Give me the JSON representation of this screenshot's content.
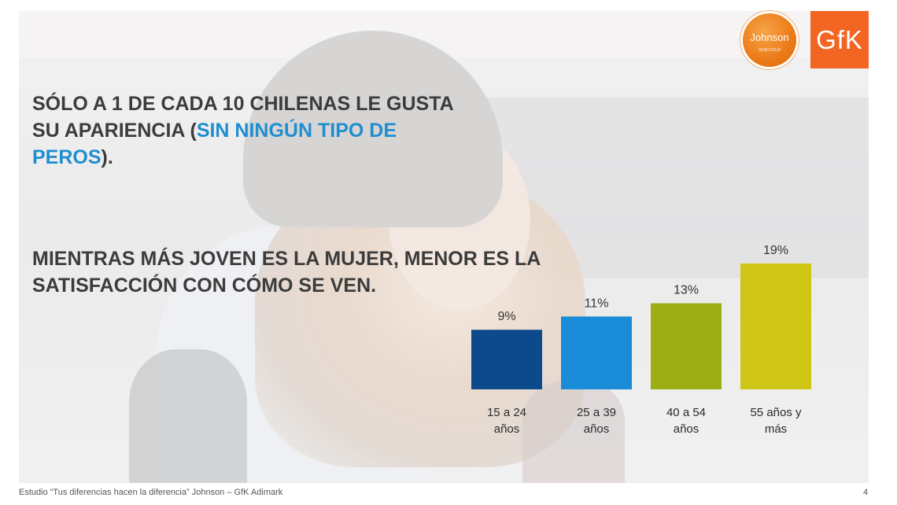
{
  "headline_1": {
    "part_1": "SÓLO A 1 DE CADA 10 CHILENAS LE GUSTA SU APARIENCIA (",
    "highlight": "SIN NINGÚN TIPO DE PEROS",
    "part_2": ")."
  },
  "headline_2": "MIENTRAS MÁS JOVEN ES LA MUJER, MENOR ES LA SATISFACCIÓN CON CÓMO SE VEN.",
  "logos": {
    "johnson": {
      "wordmark": "Johnson",
      "tagline": "CENCOSUD"
    },
    "gfk": "GfK"
  },
  "colors": {
    "highlight": "#1f8ed0",
    "gfk": "#f26522",
    "johnson": "#ec7a17"
  },
  "chart_data": {
    "type": "bar",
    "categories": [
      [
        "15 a 24",
        "años"
      ],
      [
        "25 a 39",
        "años"
      ],
      [
        "40 a 54",
        "años"
      ],
      [
        "55 años y",
        "más"
      ]
    ],
    "values": [
      9,
      11,
      13,
      19
    ],
    "value_labels": [
      "9%",
      "11%",
      "13%",
      "19%"
    ],
    "colors": [
      "#0d4a8c",
      "#1a8bd6",
      "#9cae14",
      "#cfc514"
    ],
    "ylim": [
      0,
      19
    ],
    "axes_visible": false,
    "grid": false
  },
  "footer": {
    "source": "Estudio “Tus diferencias hacen la diferencia” Johnson – GfK Adimark",
    "page": "4"
  }
}
